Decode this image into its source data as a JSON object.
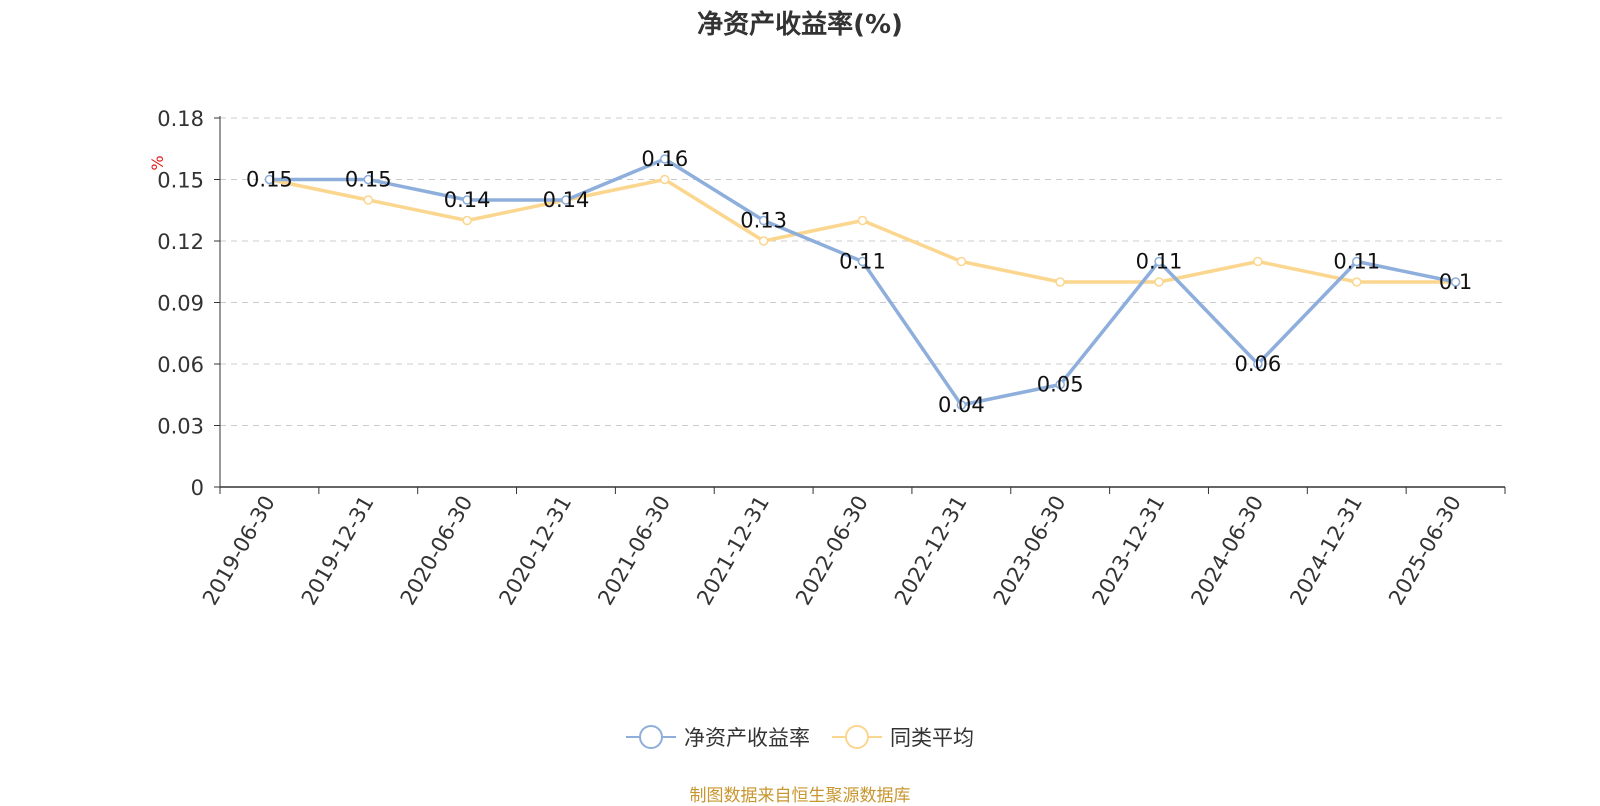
{
  "chart_data": {
    "type": "line",
    "title": "净资产收益率(%)",
    "ylabel": "%",
    "ylim": [
      0,
      0.18
    ],
    "yticks": [
      "0",
      "0.03",
      "0.06",
      "0.09",
      "0.12",
      "0.15",
      "0.18"
    ],
    "grid": true,
    "legend_position": "bottom",
    "categories": [
      "2019-06-30",
      "2019-12-31",
      "2020-06-30",
      "2020-12-31",
      "2021-06-30",
      "2021-12-31",
      "2022-06-30",
      "2022-12-31",
      "2023-06-30",
      "2023-12-31",
      "2024-06-30",
      "2024-12-31",
      "2025-06-30"
    ],
    "series": [
      {
        "name": "净资产收益率",
        "color": "#8eaedc",
        "values": [
          0.15,
          0.15,
          0.14,
          0.14,
          0.16,
          0.13,
          0.11,
          0.04,
          0.05,
          0.11,
          0.06,
          0.11,
          0.1
        ],
        "labels": [
          "0.15",
          "0.15",
          "0.14",
          "0.14",
          "0.16",
          "0.13",
          "0.11",
          "0.04",
          "0.05",
          "0.11",
          "0.06",
          "0.11",
          "0.1"
        ]
      },
      {
        "name": "同类平均",
        "color": "#fbd68e",
        "values": [
          0.15,
          0.14,
          0.13,
          0.14,
          0.15,
          0.12,
          0.13,
          0.11,
          0.1,
          0.1,
          0.11,
          0.1,
          0.1
        ]
      }
    ]
  },
  "source_note": "制图数据来自恒生聚源数据库"
}
